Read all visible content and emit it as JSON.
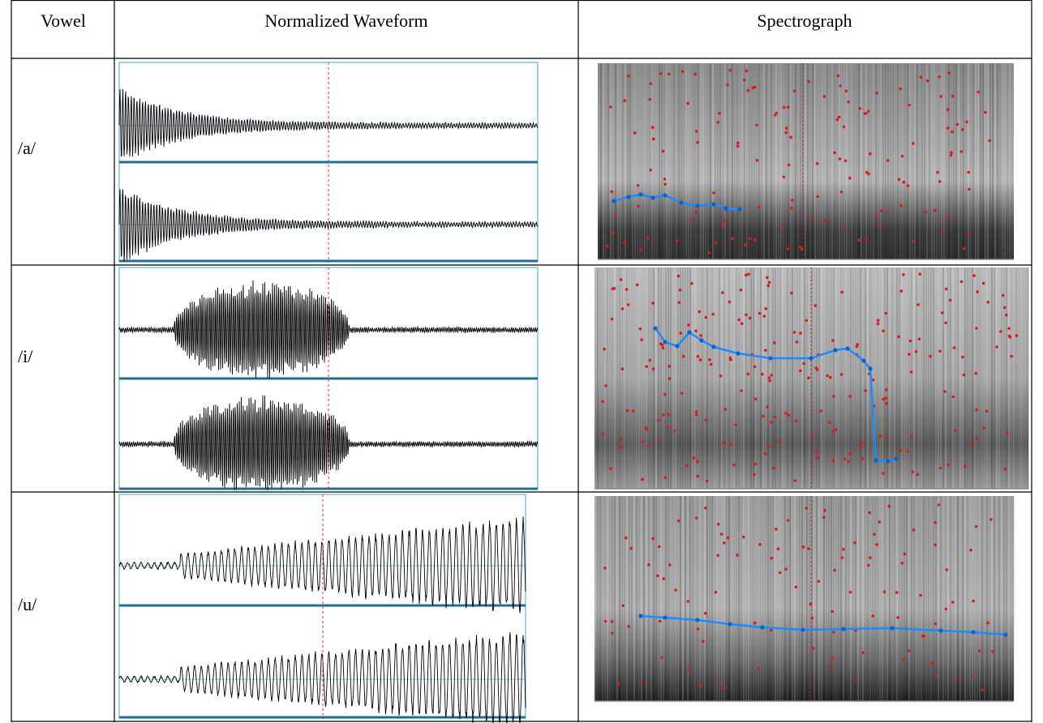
{
  "table": {
    "header": [
      "Vowel",
      "Normalized Waveform",
      "Spectrograph"
    ],
    "rows": [
      [
        "/a/"
      ],
      [
        "/i/"
      ],
      [
        "/u/"
      ]
    ]
  }
}
